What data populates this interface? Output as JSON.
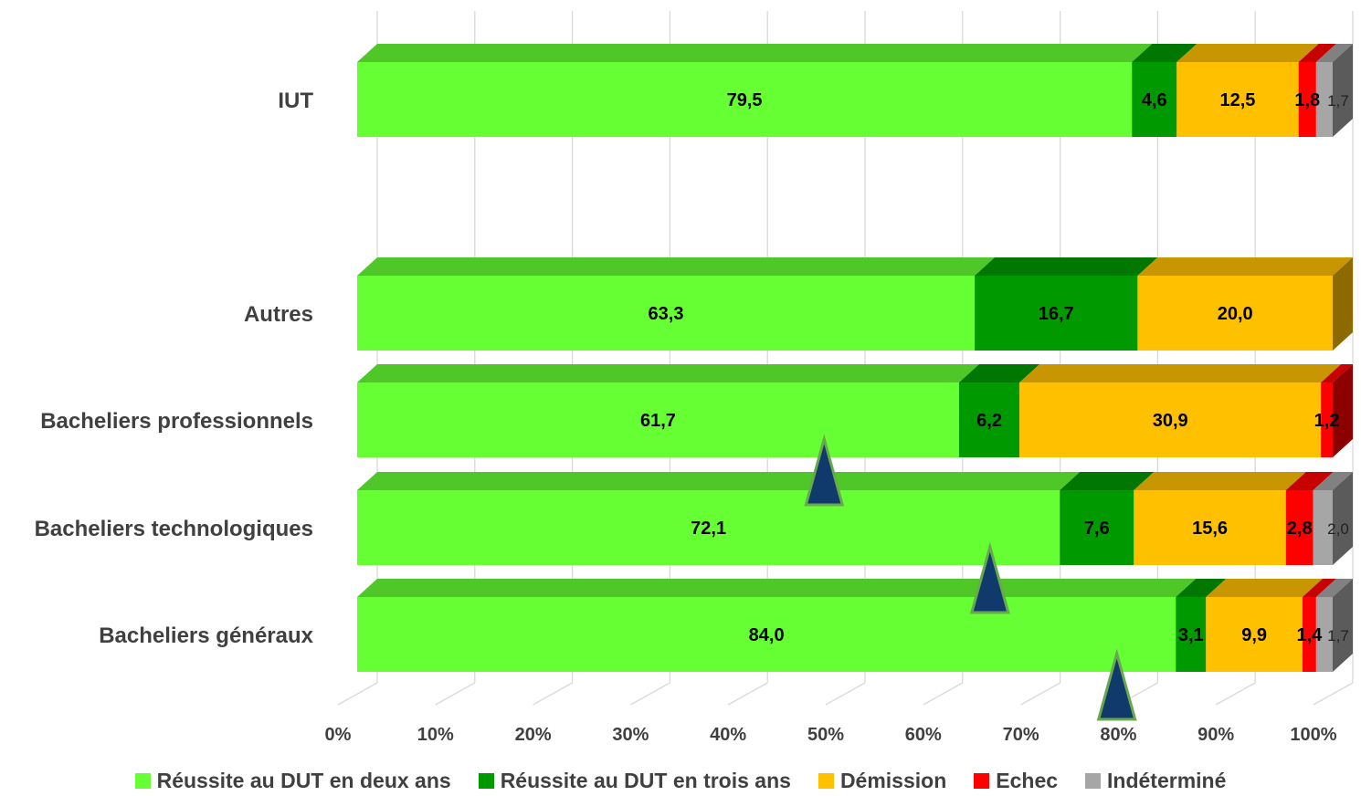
{
  "chart_data": {
    "type": "bar",
    "orientation": "horizontal",
    "stacked": "percent",
    "three_d": true,
    "categories": [
      "IUT",
      "Autres",
      "Bacheliers professionnels",
      "Bacheliers technologiques",
      "Bacheliers généraux"
    ],
    "series": [
      {
        "name": "Réussite au DUT en deux ans",
        "color": "#66ff33",
        "values": [
          79.5,
          63.3,
          61.7,
          72.1,
          84.0
        ],
        "labels": [
          "79,5",
          "63,3",
          "61,7",
          "72,1",
          "84,0"
        ]
      },
      {
        "name": "Réussite au DUT en trois ans",
        "color": "#009900",
        "values": [
          4.6,
          16.7,
          6.2,
          7.6,
          3.1
        ],
        "labels": [
          "4,6",
          "16,7",
          "6,2",
          "7,6",
          "3,1"
        ]
      },
      {
        "name": "Démission",
        "color": "#ffc000",
        "values": [
          12.5,
          20.0,
          30.9,
          15.6,
          9.9
        ],
        "labels": [
          "12,5",
          "20,0",
          "30,9",
          "15,6",
          "9,9"
        ]
      },
      {
        "name": "Echec",
        "color": "#ff0000",
        "values": [
          1.8,
          0,
          1.2,
          2.8,
          1.4
        ],
        "labels": [
          "1,8",
          "",
          "1,2",
          "2,8",
          "1,4"
        ]
      },
      {
        "name": "Indéterminé",
        "color": "#a6a6a6",
        "values": [
          1.7,
          0,
          0,
          2.0,
          1.7
        ],
        "labels": [
          "1,7",
          "",
          "",
          "2,0",
          "1,7"
        ]
      }
    ],
    "x_ticks": [
      "0%",
      "10%",
      "20%",
      "30%",
      "40%",
      "50%",
      "60%",
      "70%",
      "80%",
      "90%",
      "100%"
    ],
    "xlim": [
      0,
      100
    ],
    "grid": true,
    "legend_position": "bottom",
    "markers": [
      {
        "shape": "triangle",
        "color": "#0f3a6b",
        "category": "Bacheliers professionnels",
        "value": 46
      },
      {
        "shape": "triangle",
        "color": "#0f3a6b",
        "category": "Bacheliers technologiques",
        "value": 63
      },
      {
        "shape": "triangle",
        "color": "#0f3a6b",
        "category": "Bacheliers généraux",
        "value": 76
      }
    ]
  }
}
